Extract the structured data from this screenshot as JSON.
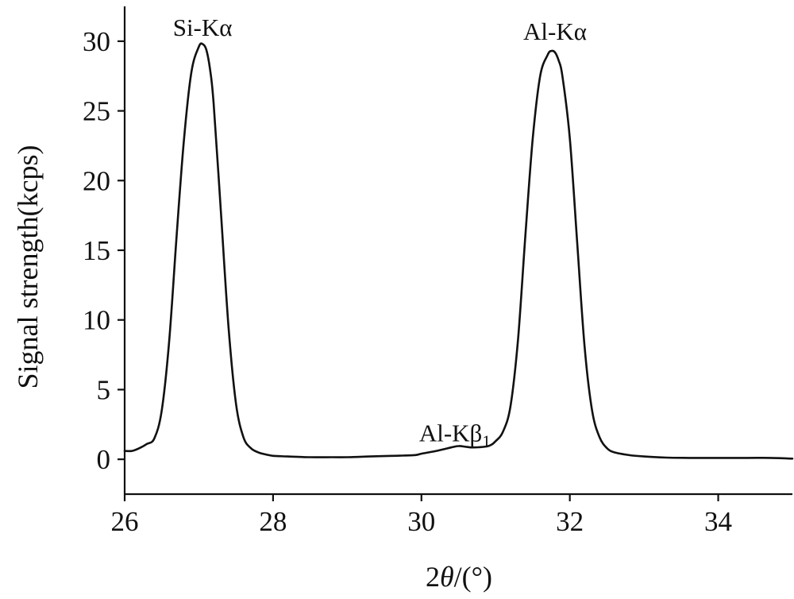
{
  "chart_data": {
    "type": "line",
    "xlabel": "2θ/(°)",
    "ylabel": "Signal strength(kcps)",
    "xlim": [
      26,
      35
    ],
    "ylim": [
      -2.5,
      32.5
    ],
    "x_ticks": [
      26,
      28,
      30,
      32,
      34
    ],
    "y_ticks": [
      0,
      5,
      10,
      15,
      20,
      25,
      30
    ],
    "grid": false,
    "legend": "none",
    "line_color": "#111111",
    "series": [
      {
        "x": [
          26.0,
          26.1,
          26.2,
          26.3,
          26.4,
          26.5,
          26.6,
          26.7,
          26.8,
          26.9,
          27.0,
          27.05,
          27.1,
          27.15,
          27.2,
          27.3,
          27.4,
          27.5,
          27.6,
          27.7,
          27.8,
          27.9,
          28.0,
          28.2,
          28.5,
          28.8,
          29.0,
          29.3,
          29.6,
          29.9,
          30.0,
          30.2,
          30.4,
          30.5,
          30.6,
          30.7,
          30.9,
          31.0,
          31.1,
          31.2,
          31.3,
          31.4,
          31.5,
          31.6,
          31.7,
          31.75,
          31.8,
          31.85,
          31.9,
          32.0,
          32.1,
          32.2,
          32.3,
          32.4,
          32.5,
          32.6,
          32.8,
          33.0,
          33.3,
          33.6,
          34.0,
          34.4,
          34.7,
          35.0
        ],
        "y": [
          0.6,
          0.6,
          0.8,
          1.1,
          1.5,
          3.5,
          8.5,
          16.0,
          23.0,
          27.8,
          29.6,
          29.8,
          29.4,
          28.0,
          25.5,
          17.5,
          9.5,
          4.0,
          1.6,
          0.8,
          0.5,
          0.35,
          0.25,
          0.2,
          0.15,
          0.15,
          0.15,
          0.2,
          0.25,
          0.3,
          0.4,
          0.6,
          0.85,
          0.95,
          0.9,
          0.85,
          0.95,
          1.3,
          2.0,
          3.8,
          8.5,
          16.0,
          23.0,
          27.5,
          29.0,
          29.3,
          29.2,
          28.6,
          27.5,
          23.0,
          15.5,
          8.0,
          3.5,
          1.6,
          0.8,
          0.5,
          0.3,
          0.2,
          0.12,
          0.1,
          0.1,
          0.1,
          0.1,
          0.05
        ]
      }
    ],
    "annotations": [
      {
        "text": "Si-Kα",
        "x": 27.05,
        "y": 30.4
      },
      {
        "text": "Al-Kβ",
        "sub": "1",
        "x": 30.45,
        "y": 1.3
      },
      {
        "text": "Al-Kα",
        "x": 31.8,
        "y": 30.1
      }
    ]
  }
}
